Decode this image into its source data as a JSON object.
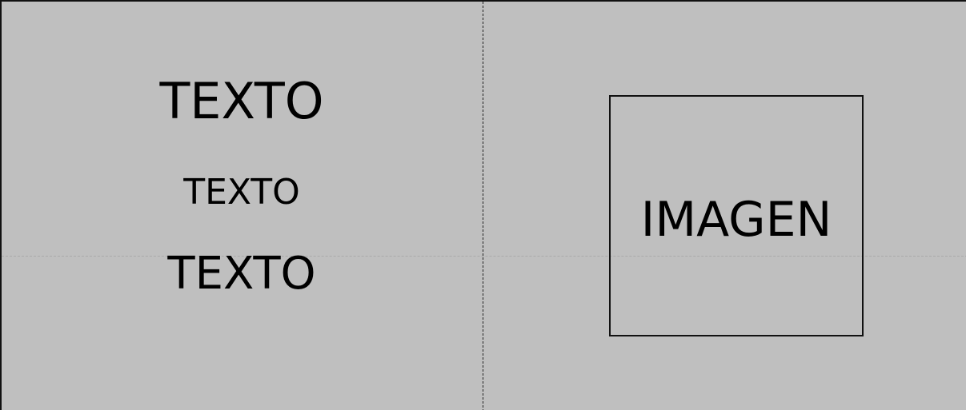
{
  "left_panel": {
    "texts": [
      "TEXTO",
      "TEXTO",
      "TEXTO"
    ]
  },
  "right_panel": {
    "image_label": "IMAGEN"
  },
  "colors": {
    "background": "#bfbfbf",
    "foreground": "#000000",
    "borders": "#111111",
    "guide": "#a9a9a9"
  }
}
